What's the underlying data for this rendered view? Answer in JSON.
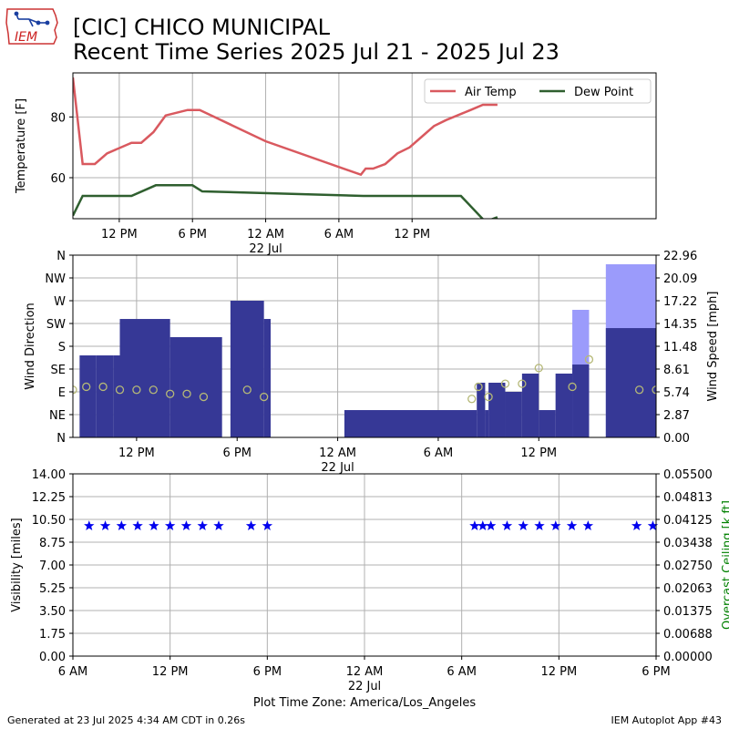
{
  "header": {
    "logo_text": "IEM",
    "title_line1": "[CIC] CHICO MUNICIPAL",
    "title_line2": "Recent Time Series 2025 Jul 21 - 2025 Jul 23"
  },
  "footer": {
    "generated": "Generated at 23 Jul 2025 4:34 AM CDT in 0.26s",
    "app": "IEM Autoplot App #43",
    "timezone": "Plot Time Zone: America/Los_Angeles"
  },
  "colors": {
    "air_temp": "#d9595f",
    "dew_point": "#2f5f2f",
    "wind_speed": "#363896",
    "wind_gust": "#9b9bfb",
    "wind_dir": "#b5b877",
    "visibility": "#0000ee",
    "ceiling_axis": "#008000",
    "grid": "#b0b0b0"
  },
  "chart_data": [
    {
      "type": "line",
      "ylabel": "Temperature [F]",
      "x_units": "hours since 2025-07-21 00:00",
      "xlim": [
        8.2,
        56
      ],
      "ylim": [
        46.5,
        94.5
      ],
      "yticks": [
        60,
        80
      ],
      "xticks": [
        {
          "x": 12,
          "label": "12 PM"
        },
        {
          "x": 18,
          "label": "6 PM"
        },
        {
          "x": 24,
          "label": "12 AM"
        },
        {
          "x": 30,
          "label": "6 AM"
        },
        {
          "x": 36,
          "label": "12 PM"
        }
      ],
      "date_label": {
        "x": 24,
        "label": "22 Jul"
      },
      "legend": [
        "Air Temp",
        "Dew Point"
      ],
      "legend_position": "top-right",
      "grid": true,
      "series": [
        {
          "name": "Air Temp",
          "color_key": "air_temp",
          "points": [
            [
              8.2,
              93
            ],
            [
              9,
              64.5
            ],
            [
              10,
              64.5
            ],
            [
              11,
              68
            ],
            [
              13,
              71.5
            ],
            [
              13.8,
              71.5
            ],
            [
              14.8,
              75
            ],
            [
              15.8,
              80.5
            ],
            [
              17.6,
              82.3
            ],
            [
              18.6,
              82.3
            ],
            [
              24,
              72
            ],
            [
              31.8,
              61
            ],
            [
              32.2,
              63
            ],
            [
              32.8,
              63
            ],
            [
              33.8,
              64.5
            ],
            [
              34.8,
              68
            ],
            [
              35.8,
              70
            ],
            [
              36.8,
              73.5
            ],
            [
              37.8,
              77
            ],
            [
              38.8,
              79
            ],
            [
              40.8,
              82.3
            ],
            [
              41.8,
              84
            ],
            [
              43,
              84
            ]
          ]
        },
        {
          "name": "Dew Point",
          "color_key": "dew_point",
          "points": [
            [
              8.2,
              47.5
            ],
            [
              9,
              54
            ],
            [
              13,
              54
            ],
            [
              15,
              57.5
            ],
            [
              18,
              57.5
            ],
            [
              18.8,
              55.5
            ],
            [
              32,
              54
            ],
            [
              40,
              54
            ],
            [
              42,
              45.5
            ],
            [
              43,
              47
            ]
          ]
        }
      ]
    },
    {
      "type": "bar",
      "ylabel": "Wind Direction",
      "y2label": "Wind Speed [mph]",
      "x_units": "hours since 2025-07-21 00:00",
      "xlim": [
        8.2,
        43
      ],
      "dir_ticks": [
        "N",
        "NE",
        "E",
        "SE",
        "S",
        "SW",
        "W",
        "NW",
        "N"
      ],
      "dir_range": [
        0,
        360
      ],
      "speed_range": [
        0,
        22.96
      ],
      "speed_ticks": [
        "0.00",
        "2.87",
        "5.74",
        "8.61",
        "11.48",
        "14.35",
        "17.22",
        "20.09",
        "22.96"
      ],
      "xticks": [
        {
          "x": 12,
          "label": "12 PM"
        },
        {
          "x": 18,
          "label": "6 PM"
        },
        {
          "x": 24,
          "label": "12 AM"
        },
        {
          "x": 30,
          "label": "6 AM"
        },
        {
          "x": 36,
          "label": "12 PM"
        }
      ],
      "date_label": {
        "x": 24,
        "label": "22 Jul"
      },
      "grid": true,
      "wind_speed_bars": [
        [
          8.6,
          9.6,
          10.33
        ],
        [
          9.6,
          10.6,
          10.33
        ],
        [
          10.6,
          11,
          10.33
        ],
        [
          11,
          14,
          14.92
        ],
        [
          14,
          17.1,
          12.63
        ],
        [
          17.6,
          19.6,
          17.22
        ],
        [
          19.6,
          20,
          14.92
        ],
        [
          24.4,
          32.3,
          3.44
        ],
        [
          32.3,
          32.8,
          6.89
        ],
        [
          32.8,
          33,
          3.44
        ],
        [
          33,
          34,
          6.89
        ],
        [
          34,
          35,
          5.74
        ],
        [
          35,
          36,
          8.04
        ],
        [
          36,
          37,
          3.44
        ],
        [
          37,
          38,
          8.04
        ],
        [
          38,
          39,
          9.18
        ],
        [
          40,
          43,
          13.77
        ]
      ],
      "wind_gust_bars": [
        [
          38,
          39,
          16.07
        ],
        [
          40,
          43,
          21.81
        ]
      ],
      "wind_dir_points": [
        [
          8.2,
          94
        ],
        [
          9,
          100
        ],
        [
          10,
          100
        ],
        [
          11,
          94
        ],
        [
          12,
          94
        ],
        [
          13,
          94
        ],
        [
          14,
          86
        ],
        [
          15,
          86
        ],
        [
          16,
          80
        ],
        [
          18.6,
          94
        ],
        [
          19.6,
          80
        ],
        [
          32,
          76
        ],
        [
          32.4,
          100
        ],
        [
          33,
          80
        ],
        [
          34,
          106
        ],
        [
          35,
          106
        ],
        [
          36,
          137
        ],
        [
          38,
          100
        ],
        [
          39,
          154
        ],
        [
          42,
          94
        ],
        [
          43,
          94
        ]
      ]
    },
    {
      "type": "scatter",
      "ylabel": "Visibility [miles]",
      "y2label": "Overcast Ceiling [k ft]",
      "x_units": "hours since 2025-07-21 00:00",
      "xlim": [
        6,
        42
      ],
      "ylim": [
        0,
        14
      ],
      "yticks": [
        "0.00",
        "1.75",
        "3.50",
        "5.25",
        "7.00",
        "8.75",
        "10.50",
        "12.25",
        "14.00"
      ],
      "y2lim": [
        0,
        0.055
      ],
      "y2ticks": [
        "0.00000",
        "0.00688",
        "0.01375",
        "0.02063",
        "0.02750",
        "0.03438",
        "0.04125",
        "0.04813",
        "0.05500"
      ],
      "xticks": [
        {
          "x": 6,
          "label": "6 AM"
        },
        {
          "x": 12,
          "label": "12 PM"
        },
        {
          "x": 18,
          "label": "6 PM"
        },
        {
          "x": 24,
          "label": "12 AM"
        },
        {
          "x": 30,
          "label": "6 AM"
        },
        {
          "x": 36,
          "label": "12 PM"
        },
        {
          "x": 42,
          "label": "6 PM"
        }
      ],
      "date_label": {
        "x": 24,
        "label": "22 Jul"
      },
      "grid": true,
      "visibility_points": [
        [
          7,
          10
        ],
        [
          8,
          10
        ],
        [
          9,
          10
        ],
        [
          10,
          10
        ],
        [
          11,
          10
        ],
        [
          12,
          10
        ],
        [
          13,
          10
        ],
        [
          14,
          10
        ],
        [
          15,
          10
        ],
        [
          17,
          10
        ],
        [
          18,
          10
        ],
        [
          30.8,
          10
        ],
        [
          31.3,
          10
        ],
        [
          31.8,
          10
        ],
        [
          32.8,
          10
        ],
        [
          33.8,
          10
        ],
        [
          34.8,
          10
        ],
        [
          35.8,
          10
        ],
        [
          36.8,
          10
        ],
        [
          37.8,
          10
        ],
        [
          40.8,
          10
        ],
        [
          41.8,
          10
        ]
      ]
    }
  ]
}
